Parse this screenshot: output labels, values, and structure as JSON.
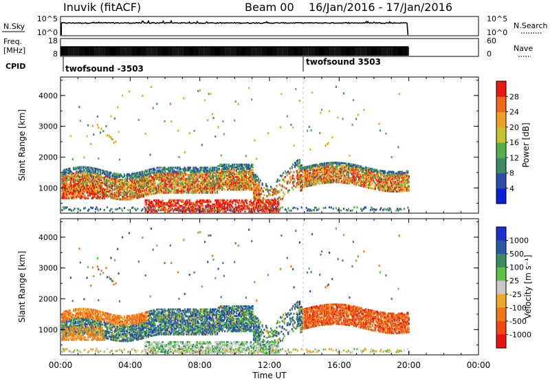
{
  "header": {
    "station": "Inuvik (fitACF)",
    "beam": "Beam 00",
    "date_range": "16/Jan/2016 - 17/Jan/2016"
  },
  "panels": {
    "nsky_label": "N.Sky",
    "nsky_ticks": [
      "10^5",
      "10^0"
    ],
    "nsearch_label": "N.Search",
    "nsearch_ticks": [
      "10^5",
      "10^0"
    ],
    "freq_label_1": "Freq.",
    "freq_label_2": "[MHz]",
    "freq_ticks": [
      "18",
      "8"
    ],
    "nave_label": "Nave",
    "nave_ticks": [
      "60",
      "0"
    ],
    "cpid_label": "CPID",
    "cpid_segments": [
      "twofsound -3503",
      "twofsound 3503"
    ]
  },
  "chart_data": [
    {
      "type": "heatmap",
      "name": "power",
      "ylabel": "Slant Range [km]",
      "xlabel": "",
      "xlim_hours": [
        0,
        24
      ],
      "ylim": [
        180,
        4600
      ],
      "yticks": [
        "1000",
        "2000",
        "3000",
        "4000"
      ],
      "colorbar_label": "Power [dB]",
      "colorbar_ticks": [
        "4",
        "8",
        "12",
        "16",
        "20",
        "24",
        "28"
      ],
      "colorbar_colors": [
        "#0a1fd6",
        "#2d4fa8",
        "#3d8a63",
        "#55b04a",
        "#c8c22a",
        "#f0a020",
        "#f06818",
        "#e81a12"
      ]
    },
    {
      "type": "heatmap",
      "name": "velocity",
      "ylabel": "Slant Range [km]",
      "xlabel": "Time UT",
      "xlim_hours": [
        0,
        24
      ],
      "ylim": [
        180,
        4600
      ],
      "yticks": [
        "1000",
        "2000",
        "3000",
        "4000"
      ],
      "xticks": [
        "00:00",
        "04:00",
        "08:00",
        "12:00",
        "16:00",
        "20:00",
        "00:00"
      ],
      "colorbar_label": "Velocity [m s⁻¹]",
      "colorbar_ticks": [
        "1000",
        "500",
        "100",
        "25",
        "-25",
        "-100",
        "-500",
        "-1000"
      ],
      "colorbar_colors": [
        "#1d2fd0",
        "#2c56a4",
        "#3c8a62",
        "#5cc240",
        "#c8c8c8",
        "#f0a828",
        "#f07818",
        "#f04810",
        "#e81010"
      ]
    }
  ]
}
